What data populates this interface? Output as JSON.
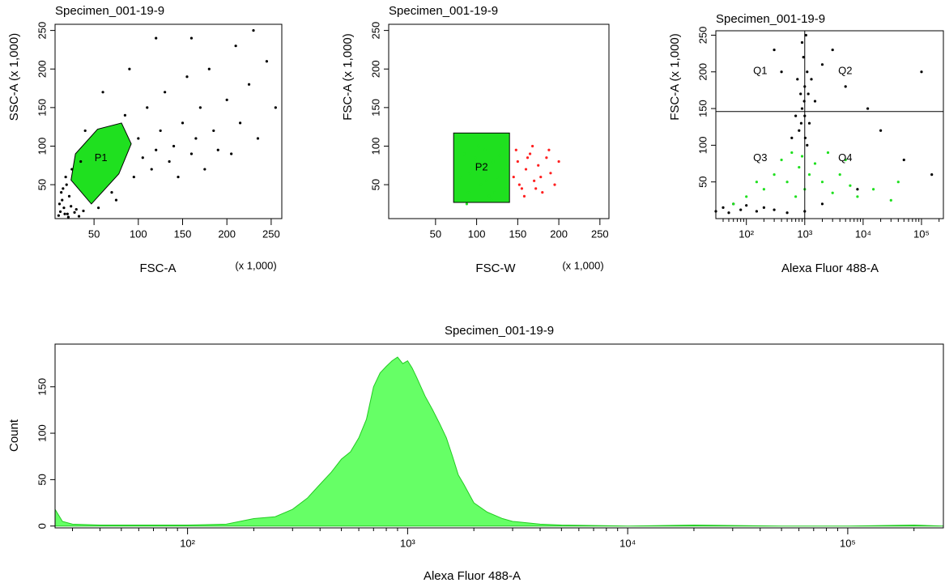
{
  "chart_data": [
    {
      "type": "scatter",
      "title": "Specimen_001-19-9",
      "xlabel": "FSC-A",
      "xunit": "(x 1,000)",
      "ylabel": "SSC-A (x 1,000)",
      "xlim": [
        6,
        262
      ],
      "ylim": [
        6,
        258
      ],
      "xticks": [
        50,
        100,
        150,
        200,
        250
      ],
      "yticks": [
        50,
        100,
        150,
        200,
        250
      ],
      "series": [
        {
          "color": "#000000",
          "x": [
            12,
            14,
            15,
            16,
            18,
            20,
            22,
            25,
            30,
            35,
            55,
            70,
            85,
            95,
            100,
            105,
            110,
            115,
            120,
            125,
            130,
            135,
            140,
            145,
            150,
            155,
            160,
            165,
            170,
            175,
            180,
            185,
            190,
            200,
            210,
            215,
            225,
            235,
            245,
            255,
            120,
            90,
            60,
            40,
            75,
            160,
            205,
            230,
            10,
            11,
            13,
            17,
            19,
            21,
            24,
            28,
            33,
            38
          ],
          "values": [
            15,
            30,
            45,
            20,
            60,
            12,
            35,
            70,
            18,
            80,
            20,
            40,
            140,
            60,
            110,
            85,
            150,
            70,
            95,
            120,
            170,
            80,
            100,
            60,
            130,
            190,
            90,
            110,
            150,
            70,
            200,
            120,
            95,
            160,
            230,
            130,
            180,
            110,
            210,
            150,
            240,
            200,
            170,
            120,
            30,
            240,
            90,
            250,
            10,
            25,
            40,
            12,
            50,
            8,
            22,
            14,
            9,
            16
          ]
        }
      ],
      "gates": [
        {
          "label": "P1",
          "color": "#1fe01f",
          "x": [
            24,
            29,
            54,
            81,
            92,
            78,
            47
          ],
          "y": [
            56,
            90,
            122,
            130,
            103,
            64,
            25
          ]
        }
      ]
    },
    {
      "type": "scatter",
      "title": "Specimen_001-19-9",
      "xlabel": "FSC-W",
      "xunit": "(x 1,000)",
      "ylabel": "FSC-A (x 1,000)",
      "xlim": [
        -7,
        261
      ],
      "ylim": [
        6,
        258
      ],
      "xticks": [
        50,
        100,
        150,
        200,
        250
      ],
      "yticks": [
        50,
        100,
        150,
        200,
        250
      ],
      "series": [
        {
          "color": "#ff2020",
          "x": [
            145,
            150,
            155,
            160,
            165,
            170,
            175,
            180,
            185,
            190,
            195,
            148,
            158,
            168,
            178,
            188,
            152,
            162,
            172,
            200
          ],
          "values": [
            60,
            80,
            45,
            70,
            90,
            55,
            75,
            40,
            85,
            65,
            50,
            95,
            35,
            100,
            60,
            95,
            50,
            85,
            45,
            80
          ]
        },
        {
          "color": "#1fe01f",
          "x": [
            75,
            80,
            85,
            90,
            95,
            100,
            105,
            110,
            115,
            120,
            125,
            130,
            135,
            138,
            78,
            88,
            98,
            108,
            118,
            128,
            92,
            102,
            112,
            122,
            132
          ],
          "values": [
            30,
            60,
            90,
            40,
            110,
            70,
            50,
            95,
            35,
            80,
            60,
            100,
            45,
            75,
            105,
            25,
            85,
            112,
            30,
            88,
            65,
            100,
            55,
            40,
            70
          ]
        }
      ],
      "gates": [
        {
          "label": "P2",
          "color": "#1fe01f",
          "x": [
            72,
            140
          ],
          "y": [
            27,
            117
          ]
        }
      ]
    },
    {
      "type": "scatter",
      "title": "Specimen_001-19-9",
      "xlabel": "Alexa Fluor 488-A",
      "ylabel": "FSC-A (x 1,000)",
      "xscale": "log",
      "xlim": [
        30,
        237000
      ],
      "ylim": [
        0,
        256
      ],
      "xticks": [
        {
          "value": 100,
          "label": "10²"
        },
        {
          "value": 1000,
          "label": "10³"
        },
        {
          "value": 10000,
          "label": "10⁴"
        },
        {
          "value": 100000,
          "label": "10⁵"
        }
      ],
      "xminorticks": [
        40,
        50,
        60,
        70,
        80,
        90,
        200,
        300,
        400,
        500,
        600,
        700,
        800,
        900,
        2000,
        3000,
        4000,
        5000,
        6000,
        7000,
        8000,
        9000,
        20000,
        30000,
        40000,
        50000,
        60000,
        70000,
        80000,
        90000,
        200000
      ],
      "yticks": [
        50,
        100,
        150,
        200,
        250
      ],
      "series": [
        {
          "color": "#000000",
          "x": [
            800,
            900,
            1000,
            1100,
            950,
            1050,
            700,
            1200,
            850,
            1300,
            600,
            1500,
            900,
            1100,
            750,
            2000,
            3000,
            5000,
            400,
            300,
            20000,
            50000,
            100000,
            30,
            40,
            50,
            60,
            80,
            100,
            150,
            200,
            300,
            500,
            1000,
            2000,
            150000,
            8000,
            12000,
            1000,
            980,
            1020,
            1150,
            870
          ],
          "values": [
            120,
            150,
            180,
            200,
            220,
            250,
            140,
            130,
            170,
            190,
            110,
            160,
            240,
            100,
            190,
            210,
            230,
            180,
            200,
            230,
            120,
            80,
            200,
            10,
            15,
            8,
            20,
            12,
            18,
            10,
            15,
            12,
            8,
            10,
            20,
            60,
            40,
            150,
            140,
            160,
            110,
            170,
            130
          ]
        },
        {
          "color": "#1fe01f",
          "x": [
            200,
            300,
            400,
            500,
            600,
            700,
            800,
            900,
            1000,
            1200,
            1500,
            2000,
            2500,
            3000,
            4000,
            6000,
            8000,
            15000,
            30000,
            100,
            150,
            60,
            5000,
            40000
          ],
          "values": [
            40,
            60,
            80,
            50,
            90,
            30,
            70,
            85,
            40,
            60,
            75,
            50,
            90,
            35,
            60,
            45,
            30,
            40,
            25,
            30,
            50,
            20,
            80,
            50
          ]
        }
      ],
      "quadrant": {
        "x": 1000,
        "y": 146,
        "labels": [
          "Q1",
          "Q2",
          "Q3",
          "Q4"
        ]
      }
    },
    {
      "type": "area",
      "title": "Specimen_001-19-9",
      "xlabel": "Alexa Fluor 488-A",
      "ylabel": "Count",
      "xscale": "log",
      "xlim": [
        25,
        272000
      ],
      "ylim": [
        -2,
        196
      ],
      "xticks": [
        {
          "value": 100,
          "label": "10²"
        },
        {
          "value": 1000,
          "label": "10³"
        },
        {
          "value": 10000,
          "label": "10⁴"
        },
        {
          "value": 100000,
          "label": "10⁵"
        }
      ],
      "xminorticks": [
        30,
        40,
        50,
        60,
        70,
        80,
        90,
        200,
        300,
        400,
        500,
        600,
        700,
        800,
        900,
        2000,
        3000,
        4000,
        5000,
        6000,
        7000,
        8000,
        9000,
        20000,
        30000,
        40000,
        50000,
        60000,
        70000,
        80000,
        90000,
        200000
      ],
      "yticks": [
        0,
        50,
        100,
        150
      ],
      "color": "#66ff66",
      "line_color": "#22cc22",
      "x": [
        25,
        27,
        30,
        40,
        60,
        100,
        150,
        200,
        250,
        300,
        350,
        400,
        450,
        500,
        550,
        600,
        650,
        700,
        750,
        800,
        850,
        900,
        950,
        1000,
        1050,
        1100,
        1200,
        1300,
        1400,
        1500,
        1600,
        1700,
        1800,
        2000,
        2300,
        2700,
        3000,
        4000,
        5000,
        10000,
        20000,
        50000,
        100000,
        200000,
        272000
      ],
      "values": [
        18,
        5,
        2,
        1,
        1,
        1,
        2,
        8,
        10,
        18,
        30,
        45,
        58,
        72,
        80,
        95,
        115,
        150,
        165,
        172,
        178,
        182,
        175,
        178,
        170,
        160,
        140,
        125,
        110,
        95,
        75,
        55,
        45,
        25,
        15,
        8,
        5,
        2,
        1,
        0,
        1,
        0,
        0,
        1,
        0
      ]
    }
  ]
}
